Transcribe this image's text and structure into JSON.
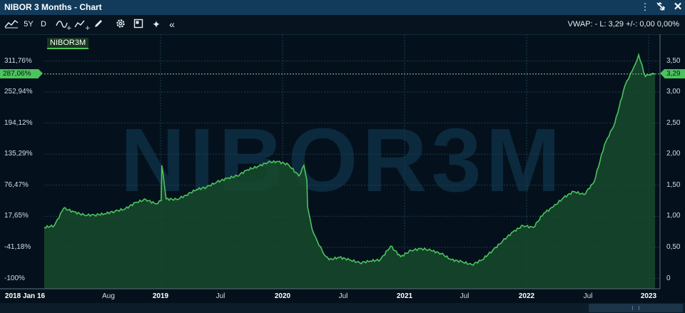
{
  "window": {
    "title": "NIBOR 3 Months - Chart",
    "icons": [
      "more-vertical-icon",
      "unlink-icon",
      "close-icon"
    ]
  },
  "toolbar": {
    "range_label": "5Y",
    "interval_label": "D",
    "vwap_text": "VWAP: -  L: 3,29  +/-: 0,00  0,00%"
  },
  "chart": {
    "watermark": "NIBOR3M",
    "series_tag": "NIBOR3M",
    "current_pct_label": "287,06%",
    "current_value_label": "3,29",
    "left_ticks": [
      "311,76%",
      "252,94%",
      "194,12%",
      "135,29%",
      "76,47%",
      "17,65%",
      "-41,18%",
      "-100%"
    ],
    "right_ticks": [
      "3,50",
      "3,00",
      "2,50",
      "2,00",
      "1,50",
      "1,00",
      "0,50",
      "0"
    ],
    "x_labels": [
      {
        "text": "2018 Jan 16",
        "bold": true
      },
      {
        "text": "Aug",
        "bold": false
      },
      {
        "text": "2019",
        "bold": true
      },
      {
        "text": "Jul",
        "bold": false
      },
      {
        "text": "2020",
        "bold": true
      },
      {
        "text": "Jul",
        "bold": false
      },
      {
        "text": "2021",
        "bold": true
      },
      {
        "text": "Jul",
        "bold": false
      },
      {
        "text": "2022",
        "bold": true
      },
      {
        "text": "Jul",
        "bold": false
      },
      {
        "text": "2023",
        "bold": true
      }
    ],
    "colors": {
      "line": "#4cc35e",
      "fill": "#174a2c",
      "background": "#04111c"
    }
  },
  "chart_data": {
    "type": "area",
    "series": [
      {
        "name": "NIBOR3M",
        "x": [
          "2018-01-16",
          "2018-02-15",
          "2018-03-15",
          "2018-04-15",
          "2018-05-15",
          "2018-06-15",
          "2018-07-15",
          "2018-08-15",
          "2018-09-15",
          "2018-10-15",
          "2018-11-15",
          "2018-12-15",
          "2018-12-31",
          "2019-01-02",
          "2019-01-15",
          "2019-02-15",
          "2019-03-15",
          "2019-04-15",
          "2019-05-15",
          "2019-06-15",
          "2019-07-15",
          "2019-08-15",
          "2019-09-15",
          "2019-10-15",
          "2019-11-15",
          "2019-12-15",
          "2020-01-15",
          "2020-02-15",
          "2020-03-01",
          "2020-03-10",
          "2020-03-12",
          "2020-03-16",
          "2020-03-25",
          "2020-04-10",
          "2020-05-01",
          "2020-05-15",
          "2020-06-15",
          "2020-07-15",
          "2020-08-15",
          "2020-09-15",
          "2020-10-15",
          "2020-11-15",
          "2020-12-15",
          "2021-01-15",
          "2021-02-15",
          "2021-03-15",
          "2021-04-15",
          "2021-05-15",
          "2021-06-15",
          "2021-07-15",
          "2021-08-15",
          "2021-09-15",
          "2021-10-15",
          "2021-11-15",
          "2021-12-15",
          "2022-01-15",
          "2022-02-15",
          "2022-03-15",
          "2022-04-15",
          "2022-05-15",
          "2022-06-15",
          "2022-07-15",
          "2022-08-15",
          "2022-09-15",
          "2022-10-15",
          "2022-11-01",
          "2022-11-15",
          "2022-11-25",
          "2022-12-15",
          "2023-01-05",
          "2023-01-13"
        ],
        "values": [
          0.82,
          0.85,
          1.13,
          1.07,
          1.02,
          1.02,
          1.04,
          1.08,
          1.12,
          1.22,
          1.27,
          1.2,
          1.25,
          1.82,
          1.28,
          1.27,
          1.34,
          1.43,
          1.47,
          1.55,
          1.61,
          1.65,
          1.75,
          1.8,
          1.87,
          1.88,
          1.83,
          1.65,
          1.82,
          1.58,
          1.15,
          1.05,
          0.8,
          0.6,
          0.38,
          0.3,
          0.34,
          0.3,
          0.25,
          0.28,
          0.3,
          0.52,
          0.35,
          0.45,
          0.48,
          0.45,
          0.4,
          0.3,
          0.27,
          0.22,
          0.3,
          0.45,
          0.6,
          0.75,
          0.85,
          0.82,
          1.05,
          1.15,
          1.3,
          1.4,
          1.35,
          1.55,
          2.15,
          2.5,
          3.1,
          3.3,
          3.45,
          3.6,
          3.25,
          3.3,
          3.29
        ],
        "current": 3.29,
        "current_pct": "287,06%"
      }
    ],
    "yaxis_right": {
      "min": 0,
      "max": 3.5
    },
    "yaxis_left": {
      "min": "-100%",
      "max": "311,76%"
    },
    "grid": true
  }
}
